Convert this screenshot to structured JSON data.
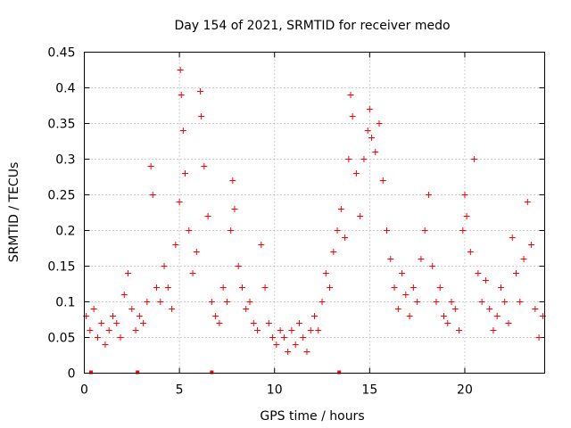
{
  "chart_data": {
    "type": "scatter",
    "title": "Day 154 of 2021, SRMTID for receiver medo",
    "xlabel": "GPS time / hours",
    "ylabel": "SRMTID / TECUs",
    "xlim": [
      0,
      24.2
    ],
    "ylim": [
      0,
      0.45
    ],
    "xticks": [
      0,
      5,
      10,
      15,
      20
    ],
    "xtick_labels": [
      "0",
      "5",
      "10",
      "15",
      "20"
    ],
    "yticks": [
      0,
      0.05,
      0.1,
      0.15,
      0.2,
      0.25,
      0.3,
      0.35,
      0.4,
      0.45
    ],
    "ytick_labels": [
      "0",
      "0.05",
      "0.1",
      "0.15",
      "0.2",
      "0.25",
      "0.3",
      "0.35",
      "0.4",
      "0.45"
    ],
    "grid": true,
    "series": [
      {
        "name": "SRMTID",
        "color": "#ff0000",
        "marker": "plus",
        "points": [
          [
            0.1,
            0.08
          ],
          [
            0.3,
            0.06
          ],
          [
            0.5,
            0.09
          ],
          [
            0.7,
            0.05
          ],
          [
            0.9,
            0.07
          ],
          [
            1.1,
            0.04
          ],
          [
            1.3,
            0.06
          ],
          [
            1.5,
            0.08
          ],
          [
            1.7,
            0.07
          ],
          [
            1.9,
            0.05
          ],
          [
            2.1,
            0.11
          ],
          [
            2.3,
            0.14
          ],
          [
            2.5,
            0.09
          ],
          [
            2.7,
            0.06
          ],
          [
            2.9,
            0.08
          ],
          [
            3.1,
            0.07
          ],
          [
            3.3,
            0.1
          ],
          [
            3.5,
            0.29
          ],
          [
            3.6,
            0.25
          ],
          [
            3.8,
            0.12
          ],
          [
            4.0,
            0.1
          ],
          [
            4.2,
            0.15
          ],
          [
            4.4,
            0.12
          ],
          [
            4.6,
            0.09
          ],
          [
            4.8,
            0.18
          ],
          [
            5.0,
            0.24
          ],
          [
            5.05,
            0.425
          ],
          [
            5.1,
            0.39
          ],
          [
            5.2,
            0.34
          ],
          [
            5.3,
            0.28
          ],
          [
            5.5,
            0.2
          ],
          [
            5.7,
            0.14
          ],
          [
            5.9,
            0.17
          ],
          [
            6.1,
            0.395
          ],
          [
            6.15,
            0.36
          ],
          [
            6.3,
            0.29
          ],
          [
            6.5,
            0.22
          ],
          [
            6.7,
            0.1
          ],
          [
            6.9,
            0.08
          ],
          [
            7.1,
            0.07
          ],
          [
            7.3,
            0.12
          ],
          [
            7.5,
            0.1
          ],
          [
            7.7,
            0.2
          ],
          [
            7.8,
            0.27
          ],
          [
            7.9,
            0.23
          ],
          [
            8.1,
            0.15
          ],
          [
            8.3,
            0.12
          ],
          [
            8.5,
            0.09
          ],
          [
            8.7,
            0.1
          ],
          [
            8.9,
            0.07
          ],
          [
            9.1,
            0.06
          ],
          [
            9.3,
            0.18
          ],
          [
            9.5,
            0.12
          ],
          [
            9.7,
            0.07
          ],
          [
            9.9,
            0.05
          ],
          [
            10.1,
            0.04
          ],
          [
            10.3,
            0.06
          ],
          [
            10.5,
            0.05
          ],
          [
            10.7,
            0.03
          ],
          [
            10.9,
            0.06
          ],
          [
            11.1,
            0.04
          ],
          [
            11.3,
            0.07
          ],
          [
            11.5,
            0.05
          ],
          [
            11.7,
            0.03
          ],
          [
            11.9,
            0.06
          ],
          [
            12.1,
            0.08
          ],
          [
            12.3,
            0.06
          ],
          [
            12.5,
            0.1
          ],
          [
            12.7,
            0.14
          ],
          [
            12.9,
            0.12
          ],
          [
            13.1,
            0.17
          ],
          [
            13.3,
            0.2
          ],
          [
            13.5,
            0.23
          ],
          [
            13.7,
            0.19
          ],
          [
            13.9,
            0.3
          ],
          [
            14.0,
            0.39
          ],
          [
            14.1,
            0.36
          ],
          [
            14.3,
            0.28
          ],
          [
            14.5,
            0.22
          ],
          [
            14.7,
            0.3
          ],
          [
            14.9,
            0.34
          ],
          [
            15.0,
            0.37
          ],
          [
            15.1,
            0.33
          ],
          [
            15.3,
            0.31
          ],
          [
            15.5,
            0.35
          ],
          [
            15.7,
            0.27
          ],
          [
            15.9,
            0.2
          ],
          [
            16.1,
            0.16
          ],
          [
            16.3,
            0.12
          ],
          [
            16.5,
            0.09
          ],
          [
            16.7,
            0.14
          ],
          [
            16.9,
            0.11
          ],
          [
            17.1,
            0.08
          ],
          [
            17.3,
            0.12
          ],
          [
            17.5,
            0.1
          ],
          [
            17.7,
            0.16
          ],
          [
            17.9,
            0.2
          ],
          [
            18.1,
            0.25
          ],
          [
            18.3,
            0.15
          ],
          [
            18.5,
            0.1
          ],
          [
            18.7,
            0.12
          ],
          [
            18.9,
            0.08
          ],
          [
            19.1,
            0.07
          ],
          [
            19.3,
            0.1
          ],
          [
            19.5,
            0.09
          ],
          [
            19.7,
            0.06
          ],
          [
            19.9,
            0.2
          ],
          [
            20.0,
            0.25
          ],
          [
            20.1,
            0.22
          ],
          [
            20.3,
            0.17
          ],
          [
            20.5,
            0.3
          ],
          [
            20.7,
            0.14
          ],
          [
            20.9,
            0.1
          ],
          [
            21.1,
            0.13
          ],
          [
            21.3,
            0.09
          ],
          [
            21.5,
            0.06
          ],
          [
            21.7,
            0.08
          ],
          [
            21.9,
            0.12
          ],
          [
            22.1,
            0.1
          ],
          [
            22.3,
            0.07
          ],
          [
            22.5,
            0.19
          ],
          [
            22.7,
            0.14
          ],
          [
            22.9,
            0.1
          ],
          [
            23.1,
            0.16
          ],
          [
            23.3,
            0.24
          ],
          [
            23.5,
            0.18
          ],
          [
            23.7,
            0.09
          ],
          [
            23.9,
            0.05
          ],
          [
            24.1,
            0.08
          ]
        ]
      }
    ],
    "gap_markers_x": [
      0.35,
      2.8,
      6.7,
      13.4
    ]
  }
}
